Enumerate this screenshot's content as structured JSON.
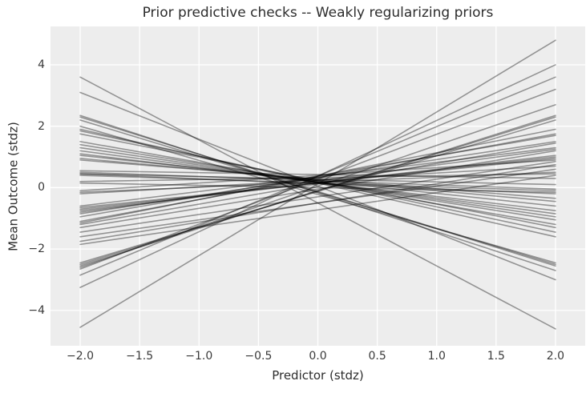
{
  "figure": {
    "title": "Prior predictive checks -- Weakly regularizing priors",
    "xlabel": "Predictor (stdz)",
    "ylabel": "Mean Outcome (stdz)"
  },
  "chart_data": {
    "type": "line",
    "title": "Prior predictive checks -- Weakly regularizing priors",
    "xlabel": "Predictor (stdz)",
    "ylabel": "Mean Outcome (stdz)",
    "xlim": [
      -2.25,
      2.25
    ],
    "ylim": [
      -5.15,
      5.25
    ],
    "x_ticks": [
      -2.0,
      -1.5,
      -1.0,
      -0.5,
      0.0,
      0.5,
      1.0,
      1.5,
      2.0
    ],
    "x_tick_labels": [
      "−2.0",
      "−1.5",
      "−1.0",
      "−0.5",
      "0.0",
      "0.5",
      "1.0",
      "1.5",
      "2.0"
    ],
    "y_ticks": [
      -4,
      -2,
      0,
      2,
      4
    ],
    "y_tick_labels": [
      "−4",
      "−2",
      "0",
      "2",
      "4"
    ],
    "grid": true,
    "legend": null,
    "x_span": [
      -2,
      2
    ],
    "lines_note": "Each entry is [y at x=-2, y at x=+2] for one straight prior draw line",
    "lines": [
      [
        -4.55,
        4.8
      ],
      [
        3.6,
        -4.6
      ],
      [
        3.1,
        -3.0
      ],
      [
        -3.25,
        4.0
      ],
      [
        -2.85,
        3.6
      ],
      [
        -2.65,
        3.2
      ],
      [
        -2.6,
        2.7
      ],
      [
        -2.45,
        2.2
      ],
      [
        -2.5,
        2.3
      ],
      [
        -2.55,
        2.35
      ],
      [
        2.35,
        -2.7
      ],
      [
        2.3,
        -2.55
      ],
      [
        2.2,
        -2.5
      ],
      [
        2.0,
        -2.45
      ],
      [
        1.9,
        -1.6
      ],
      [
        1.85,
        -1.45
      ],
      [
        1.75,
        -1.3
      ],
      [
        1.5,
        -1.2
      ],
      [
        1.4,
        -1.05
      ],
      [
        1.3,
        -0.95
      ],
      [
        1.2,
        -0.85
      ],
      [
        1.1,
        -0.75
      ],
      [
        1.05,
        -0.6
      ],
      [
        0.95,
        -0.45
      ],
      [
        0.9,
        -0.35
      ],
      [
        0.55,
        0.3
      ],
      [
        0.5,
        -0.05
      ],
      [
        0.45,
        -0.2
      ],
      [
        0.45,
        0.1
      ],
      [
        0.4,
        -0.1
      ],
      [
        0.2,
        0.45
      ],
      [
        0.15,
        -0.15
      ],
      [
        -0.1,
        0.9
      ],
      [
        -0.15,
        0.5
      ],
      [
        -0.2,
        0.7
      ],
      [
        -0.6,
        1.3
      ],
      [
        -0.65,
        0.95
      ],
      [
        -0.7,
        1.0
      ],
      [
        -0.75,
        1.05
      ],
      [
        -0.8,
        1.25
      ],
      [
        -0.85,
        1.5
      ],
      [
        -0.95,
        1.7
      ],
      [
        -1.1,
        1.75
      ],
      [
        -1.15,
        1.9
      ],
      [
        -1.2,
        1.45
      ],
      [
        -1.3,
        1.2
      ],
      [
        -1.45,
        0.85
      ],
      [
        -1.6,
        0.6
      ],
      [
        -1.75,
        0.75
      ],
      [
        -1.85,
        0.4
      ]
    ],
    "style": {
      "axes_background": "#ededed",
      "figure_background": "#ffffff",
      "grid_color": "#ffffff",
      "line_color": "#000000",
      "line_alpha": 0.38,
      "line_width": 1.6,
      "text_color": "#2d2d2d",
      "tick_color": "#3a3a3a"
    }
  }
}
